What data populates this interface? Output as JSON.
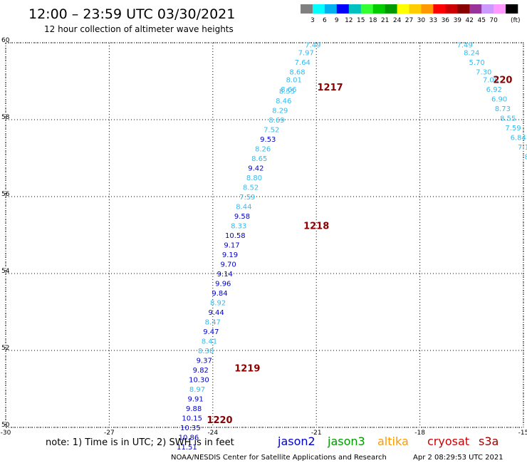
{
  "header": {
    "title": "12:00 – 23:59 UTC 03/30/2021",
    "subtitle": "12 hour collection of altimeter wave heights"
  },
  "scale": {
    "colors": [
      "#808080",
      "#00ffff",
      "#00b0f0",
      "#0000ff",
      "#00c0c0",
      "#33ff33",
      "#00cc00",
      "#009900",
      "#ffff00",
      "#ffcc00",
      "#ff9900",
      "#ff0000",
      "#cc0000",
      "#880000",
      "#993399",
      "#cc99ff",
      "#ff99ff",
      "#000000"
    ],
    "labels": [
      "3",
      "6",
      "9",
      "12",
      "15",
      "18",
      "21",
      "24",
      "27",
      "30",
      "33",
      "36",
      "39",
      "42",
      "45",
      "70"
    ],
    "unit": "(ft)"
  },
  "footer": {
    "note": "note: 1) Time is in UTC; 2) SWH is in feet",
    "credit": "NOAA/NESDIS Center for Satellite Applications and Research",
    "timestamp": "Apr  2 08:29:53 UTC 2021"
  },
  "legend": [
    {
      "name": "jason2",
      "color": "#0000cc"
    },
    {
      "name": "jason3",
      "color": "#009900"
    },
    {
      "name": "altika",
      "color": "#ff9900"
    },
    {
      "name": "cryosat",
      "color": "#cc0000"
    },
    {
      "name": "s3a",
      "color": "#990000"
    }
  ],
  "chart_data": {
    "type": "scatter",
    "xlim": [
      -30,
      -15
    ],
    "ylim": [
      50,
      60
    ],
    "xticks": [
      "-30",
      "-27",
      "-24",
      "-21",
      "-18",
      "-15"
    ],
    "yticks": [
      "50",
      "52",
      "54",
      "56",
      "58",
      "60"
    ],
    "grid": true,
    "points": [
      {
        "lon": -21.1,
        "lat": 59.95,
        "label": "7.49",
        "color": "#33bbee"
      },
      {
        "lon": -21.3,
        "lat": 59.75,
        "label": "7.97",
        "color": "#33bbee"
      },
      {
        "lon": -21.4,
        "lat": 59.5,
        "label": "7.64",
        "color": "#33bbee"
      },
      {
        "lon": -21.55,
        "lat": 59.25,
        "label": "8.68",
        "color": "#33bbee"
      },
      {
        "lon": -21.65,
        "lat": 59.05,
        "label": "8.01",
        "color": "#33bbee"
      },
      {
        "lon": -21.8,
        "lat": 58.8,
        "label": "8.66",
        "color": "#33bbee"
      },
      {
        "lon": -21.85,
        "lat": 58.75,
        "label": "8.55",
        "color": "#33bbee"
      },
      {
        "lon": -21.95,
        "lat": 58.5,
        "label": "8.46",
        "color": "#33bbee"
      },
      {
        "lon": -22.05,
        "lat": 58.25,
        "label": "8.29",
        "color": "#33bbee"
      },
      {
        "lon": -22.15,
        "lat": 58.0,
        "label": "8.69",
        "color": "#33bbee"
      },
      {
        "lon": -22.3,
        "lat": 57.75,
        "label": "7.52",
        "color": "#33bbee"
      },
      {
        "lon": -22.4,
        "lat": 57.5,
        "label": "9.53",
        "color": "#0000cc"
      },
      {
        "lon": -22.55,
        "lat": 57.25,
        "label": "8.26",
        "color": "#33bbee"
      },
      {
        "lon": -22.65,
        "lat": 57.0,
        "label": "8.65",
        "color": "#33bbee"
      },
      {
        "lon": -22.75,
        "lat": 56.75,
        "label": "9.42",
        "color": "#0000cc"
      },
      {
        "lon": -22.8,
        "lat": 56.5,
        "label": "8.80",
        "color": "#33bbee"
      },
      {
        "lon": -22.9,
        "lat": 56.25,
        "label": "8.52",
        "color": "#33bbee"
      },
      {
        "lon": -23.0,
        "lat": 56.0,
        "label": "7.59",
        "color": "#33bbee"
      },
      {
        "lon": -23.1,
        "lat": 55.75,
        "label": "8.44",
        "color": "#33bbee"
      },
      {
        "lon": -23.15,
        "lat": 55.5,
        "label": "9.58",
        "color": "#0000cc"
      },
      {
        "lon": -23.25,
        "lat": 55.25,
        "label": "8.33",
        "color": "#33bbee"
      },
      {
        "lon": -23.35,
        "lat": 55.0,
        "label": "10.58",
        "color": "#0000cc"
      },
      {
        "lon": -23.45,
        "lat": 54.75,
        "label": "9.17",
        "color": "#0000cc"
      },
      {
        "lon": -23.5,
        "lat": 54.5,
        "label": "9.19",
        "color": "#0000cc"
      },
      {
        "lon": -23.55,
        "lat": 54.25,
        "label": "9.70",
        "color": "#0000cc"
      },
      {
        "lon": -23.65,
        "lat": 54.0,
        "label": "9.14",
        "color": "#0000cc"
      },
      {
        "lon": -23.7,
        "lat": 53.75,
        "label": "9.96",
        "color": "#0000cc"
      },
      {
        "lon": -23.8,
        "lat": 53.5,
        "label": "9.84",
        "color": "#0000cc"
      },
      {
        "lon": -23.85,
        "lat": 53.25,
        "label": "8.92",
        "color": "#33bbee"
      },
      {
        "lon": -23.9,
        "lat": 53.0,
        "label": "9.44",
        "color": "#0000cc"
      },
      {
        "lon": -24.0,
        "lat": 52.75,
        "label": "8.47",
        "color": "#33bbee"
      },
      {
        "lon": -24.05,
        "lat": 52.5,
        "label": "9.47",
        "color": "#0000cc"
      },
      {
        "lon": -24.1,
        "lat": 52.25,
        "label": "8.41",
        "color": "#33bbee"
      },
      {
        "lon": -24.2,
        "lat": 52.0,
        "label": "8.30",
        "color": "#33bbee"
      },
      {
        "lon": -24.25,
        "lat": 51.75,
        "label": "9.37",
        "color": "#0000cc"
      },
      {
        "lon": -24.35,
        "lat": 51.5,
        "label": "9.82",
        "color": "#0000cc"
      },
      {
        "lon": -24.4,
        "lat": 51.25,
        "label": "10.30",
        "color": "#0000cc"
      },
      {
        "lon": -24.45,
        "lat": 51.0,
        "label": "8.97",
        "color": "#33bbee"
      },
      {
        "lon": -24.5,
        "lat": 50.75,
        "label": "9.91",
        "color": "#0000cc"
      },
      {
        "lon": -24.55,
        "lat": 50.5,
        "label": "9.88",
        "color": "#0000cc"
      },
      {
        "lon": -24.6,
        "lat": 50.25,
        "label": "10.15",
        "color": "#0000cc"
      },
      {
        "lon": -24.65,
        "lat": 50.0,
        "label": "10.35",
        "color": "#0000cc"
      },
      {
        "lon": -24.7,
        "lat": 49.75,
        "label": "10.86",
        "color": "#0000cc"
      },
      {
        "lon": -24.75,
        "lat": 49.5,
        "label": "11.51",
        "color": "#0000cc"
      },
      {
        "lon": -16.7,
        "lat": 59.95,
        "label": "7.49",
        "color": "#33bbee"
      },
      {
        "lon": -16.5,
        "lat": 59.75,
        "label": "8.24",
        "color": "#33bbee"
      },
      {
        "lon": -16.35,
        "lat": 59.5,
        "label": "5.70",
        "color": "#33bbee"
      },
      {
        "lon": -16.15,
        "lat": 59.25,
        "label": "7.30",
        "color": "#33bbee"
      },
      {
        "lon": -15.95,
        "lat": 59.05,
        "label": "7.08",
        "color": "#33bbee"
      },
      {
        "lon": -15.85,
        "lat": 58.8,
        "label": "6.92",
        "color": "#33bbee"
      },
      {
        "lon": -15.7,
        "lat": 58.55,
        "label": "6.90",
        "color": "#33bbee"
      },
      {
        "lon": -15.6,
        "lat": 58.3,
        "label": "8.73",
        "color": "#33bbee"
      },
      {
        "lon": -15.45,
        "lat": 58.05,
        "label": "8.55",
        "color": "#33bbee"
      },
      {
        "lon": -15.3,
        "lat": 57.8,
        "label": "7.59",
        "color": "#33bbee"
      },
      {
        "lon": -15.15,
        "lat": 57.55,
        "label": "6.84",
        "color": "#33bbee"
      },
      {
        "lon": -15.0,
        "lat": 57.3,
        "label": "7.1",
        "color": "#33bbee"
      },
      {
        "lon": -14.9,
        "lat": 57.05,
        "label": "8",
        "color": "#33bbee"
      }
    ],
    "passes": [
      {
        "lon": -20.6,
        "lat": 58.85,
        "label": "1217",
        "color": "#880000"
      },
      {
        "lon": -21.0,
        "lat": 55.25,
        "label": "1218",
        "color": "#880000"
      },
      {
        "lon": -23.0,
        "lat": 51.55,
        "label": "1219",
        "color": "#880000"
      },
      {
        "lon": -23.8,
        "lat": 50.2,
        "label": "1220",
        "color": "#880000"
      },
      {
        "lon": -15.6,
        "lat": 59.05,
        "label": "220",
        "color": "#880000"
      }
    ]
  }
}
